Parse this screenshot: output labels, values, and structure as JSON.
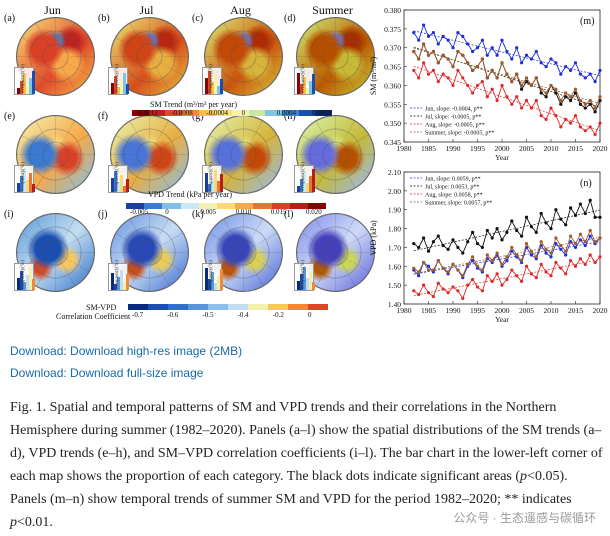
{
  "figure": {
    "columns": [
      "Jun",
      "Jul",
      "Aug",
      "Summer"
    ],
    "panel_letters": [
      "(a)",
      "(b)",
      "(c)",
      "(d)",
      "(e)",
      "(f)",
      "(g)",
      "(h)",
      "(i)",
      "(j)",
      "(k)",
      "(l)"
    ],
    "frequency_label": "Frequency(%)",
    "sm_legend": {
      "title": "SM Trend (m³/m³ per year)",
      "ticks": [
        "-0.0012",
        "-0.0008",
        "-0.0004",
        "0",
        "0.0004",
        "0.0008"
      ],
      "colors": [
        "#8b0000",
        "#c0221f",
        "#e04a2a",
        "#f08a3a",
        "#f7c04a",
        "#fae27a",
        "#f6f4b0",
        "#c7e9a0",
        "#7dc7e3",
        "#3a84cc",
        "#1a4fb0",
        "#0a2a80"
      ]
    },
    "vpd_legend": {
      "title": "VPD Trend (kPa per year)",
      "ticks": [
        "-0.005",
        "0",
        "0.005",
        "0.010",
        "0.015",
        "0.020"
      ],
      "colors": [
        "#1a3fa0",
        "#3a7ad0",
        "#7ec1e8",
        "#c9e8f3",
        "#f3f1b0",
        "#fbd77a",
        "#f6a94a",
        "#ec7338",
        "#d94026",
        "#b81d19",
        "#8b0000"
      ]
    },
    "corr_legend": {
      "title_line1": "SM-VPD",
      "title_line2": "Correlation Coefficient",
      "ticks": [
        "-0.7",
        "-0.6",
        "-0.5",
        "-0.4",
        "-0.2",
        "0"
      ],
      "colors": [
        "#0a2a80",
        "#1a4fb0",
        "#2f6fc8",
        "#5a97da",
        "#8bbee8",
        "#c4def1",
        "#f3f1b0",
        "#f8c760",
        "#ef8a3a",
        "#d64b27"
      ]
    },
    "sm_chart": {
      "letter": "(m)",
      "ylabel": "SM (m³/m³)",
      "xlabel": "Year",
      "yticks": [
        "0.380",
        "0.375",
        "0.370",
        "0.365",
        "0.360",
        "0.355",
        "0.350",
        "0.345"
      ],
      "xticks": [
        "1980",
        "1985",
        "1990",
        "1995",
        "2000",
        "2005",
        "2010",
        "2015",
        "2020"
      ],
      "legend": [
        "Jun, slope: -0.0004, p**",
        "Jul, slope: -0.0005, p**",
        "Aug, slope: -0.0005, p**",
        "Summer, slope: -0.0005, p**"
      ]
    },
    "vpd_chart": {
      "letter": "(n)",
      "ylabel": "VPD (kPa)",
      "xlabel": "Year",
      "yticks": [
        "2.10",
        "2.00",
        "1.90",
        "1.80",
        "1.70",
        "1.60",
        "1.50",
        "1.40"
      ],
      "xticks": [
        "1980",
        "1985",
        "1990",
        "1995",
        "2000",
        "2005",
        "2010",
        "2015",
        "2020"
      ],
      "legend": [
        "Jun, slope: 0.0059, p**",
        "Jul, slope: 0.0053, p**",
        "Aug, slope: 0.0058, p**",
        "Summer, slope: 0.0057, p**"
      ]
    }
  },
  "chart_data": [
    {
      "type": "line",
      "title": "(m)",
      "xlabel": "Year",
      "ylabel": "SM (m³/m³)",
      "xlim": [
        1980,
        2020
      ],
      "ylim": [
        0.345,
        0.38
      ],
      "x": [
        1982,
        1983,
        1984,
        1985,
        1986,
        1987,
        1988,
        1989,
        1990,
        1991,
        1992,
        1993,
        1994,
        1995,
        1996,
        1997,
        1998,
        1999,
        2000,
        2001,
        2002,
        2003,
        2004,
        2005,
        2006,
        2007,
        2008,
        2009,
        2010,
        2011,
        2012,
        2013,
        2014,
        2015,
        2016,
        2017,
        2018,
        2019,
        2020
      ],
      "series": [
        {
          "name": "Jun",
          "color": "#1f2fd6",
          "values": [
            0.374,
            0.372,
            0.376,
            0.373,
            0.374,
            0.371,
            0.373,
            0.372,
            0.37,
            0.374,
            0.373,
            0.371,
            0.369,
            0.37,
            0.372,
            0.368,
            0.37,
            0.368,
            0.372,
            0.369,
            0.367,
            0.37,
            0.366,
            0.368,
            0.367,
            0.369,
            0.366,
            0.365,
            0.367,
            0.366,
            0.363,
            0.365,
            0.364,
            0.366,
            0.363,
            0.362,
            0.363,
            0.361,
            0.364
          ]
        },
        {
          "name": "Jul",
          "color": "#111111",
          "values": [
            0.369,
            0.367,
            0.371,
            0.368,
            0.369,
            0.366,
            0.368,
            0.367,
            0.365,
            0.369,
            0.368,
            0.366,
            0.364,
            0.365,
            0.367,
            0.362,
            0.364,
            0.362,
            0.366,
            0.363,
            0.361,
            0.363,
            0.359,
            0.361,
            0.36,
            0.362,
            0.358,
            0.357,
            0.36,
            0.358,
            0.355,
            0.357,
            0.356,
            0.358,
            0.355,
            0.354,
            0.355,
            0.353,
            0.356
          ]
        },
        {
          "name": "Aug",
          "color": "#e02a2a",
          "values": [
            0.364,
            0.362,
            0.366,
            0.363,
            0.364,
            0.361,
            0.363,
            0.362,
            0.36,
            0.364,
            0.362,
            0.36,
            0.358,
            0.36,
            0.361,
            0.357,
            0.359,
            0.356,
            0.36,
            0.357,
            0.355,
            0.357,
            0.354,
            0.356,
            0.354,
            0.356,
            0.352,
            0.351,
            0.354,
            0.352,
            0.349,
            0.351,
            0.35,
            0.352,
            0.349,
            0.348,
            0.349,
            0.347,
            0.35
          ]
        },
        {
          "name": "Summer",
          "color": "#a05a2c",
          "values": [
            0.369,
            0.367,
            0.371,
            0.368,
            0.369,
            0.366,
            0.368,
            0.367,
            0.365,
            0.369,
            0.368,
            0.366,
            0.364,
            0.365,
            0.367,
            0.362,
            0.364,
            0.362,
            0.366,
            0.363,
            0.361,
            0.363,
            0.36,
            0.362,
            0.36,
            0.362,
            0.359,
            0.358,
            0.36,
            0.359,
            0.356,
            0.358,
            0.357,
            0.359,
            0.356,
            0.355,
            0.356,
            0.354,
            0.357
          ]
        }
      ]
    },
    {
      "type": "line",
      "title": "(n)",
      "xlabel": "Year",
      "ylabel": "VPD (kPa)",
      "xlim": [
        1980,
        2020
      ],
      "ylim": [
        1.4,
        2.1
      ],
      "x": [
        1982,
        1983,
        1984,
        1985,
        1986,
        1987,
        1988,
        1989,
        1990,
        1991,
        1992,
        1993,
        1994,
        1995,
        1996,
        1997,
        1998,
        1999,
        2000,
        2001,
        2002,
        2003,
        2004,
        2005,
        2006,
        2007,
        2008,
        2009,
        2010,
        2011,
        2012,
        2013,
        2014,
        2015,
        2016,
        2017,
        2018,
        2019,
        2020
      ],
      "series": [
        {
          "name": "Jun",
          "color": "#1f2fd6",
          "values": [
            1.58,
            1.55,
            1.62,
            1.6,
            1.57,
            1.63,
            1.59,
            1.56,
            1.61,
            1.58,
            1.54,
            1.6,
            1.63,
            1.59,
            1.57,
            1.64,
            1.62,
            1.66,
            1.6,
            1.63,
            1.68,
            1.65,
            1.62,
            1.7,
            1.66,
            1.64,
            1.71,
            1.67,
            1.65,
            1.72,
            1.69,
            1.66,
            1.73,
            1.7,
            1.74,
            1.71,
            1.76,
            1.72,
            1.75
          ]
        },
        {
          "name": "Jul",
          "color": "#111111",
          "values": [
            1.72,
            1.7,
            1.75,
            1.68,
            1.73,
            1.76,
            1.71,
            1.69,
            1.74,
            1.7,
            1.67,
            1.73,
            1.78,
            1.72,
            1.7,
            1.79,
            1.75,
            1.8,
            1.74,
            1.78,
            1.84,
            1.79,
            1.76,
            1.86,
            1.81,
            1.78,
            1.88,
            1.83,
            1.8,
            1.9,
            1.85,
            1.82,
            1.91,
            1.87,
            1.93,
            1.88,
            1.95,
            1.86,
            1.86
          ]
        },
        {
          "name": "Aug",
          "color": "#e02a2a",
          "values": [
            1.47,
            1.45,
            1.5,
            1.46,
            1.44,
            1.51,
            1.48,
            1.46,
            1.49,
            1.47,
            1.43,
            1.5,
            1.53,
            1.49,
            1.47,
            1.55,
            1.52,
            1.56,
            1.5,
            1.53,
            1.58,
            1.55,
            1.52,
            1.6,
            1.56,
            1.54,
            1.61,
            1.57,
            1.55,
            1.62,
            1.59,
            1.56,
            1.63,
            1.6,
            1.64,
            1.61,
            1.66,
            1.62,
            1.65
          ]
        },
        {
          "name": "Summer",
          "color": "#a05a2c",
          "values": [
            1.59,
            1.57,
            1.62,
            1.58,
            1.58,
            1.63,
            1.59,
            1.57,
            1.61,
            1.58,
            1.55,
            1.61,
            1.65,
            1.6,
            1.58,
            1.66,
            1.63,
            1.67,
            1.61,
            1.65,
            1.7,
            1.66,
            1.63,
            1.72,
            1.68,
            1.65,
            1.73,
            1.69,
            1.67,
            1.75,
            1.71,
            1.68,
            1.76,
            1.72,
            1.77,
            1.73,
            1.79,
            1.73,
            1.75
          ]
        }
      ]
    }
  ],
  "links": {
    "highres": "Download: Download high-res image (2MB)",
    "fullsize": "Download: Download full-size image"
  },
  "caption": {
    "part1": "Fig. 1. Spatial and temporal patterns of SM and VPD trends and their correlations in the Northern Hemisphere during summer (1982–2020). Panels (a–l) show the spatial distributions of the SM trends (a–d), VPD trends (e–h), and SM–VPD correlation coefficients (i–l). The bar chart in the lower-left corner of each map shows the proportion of each category. The black dots indicate significant areas (",
    "p1": "p",
    "part2": "<0.05). Panels (m–n) show temporal trends of summer SM and VPD for the period 1982–2020; ** indicates ",
    "p2": "p",
    "part3": "<0.01."
  },
  "watermark": "公众号 · 生态遥感与碳循环"
}
